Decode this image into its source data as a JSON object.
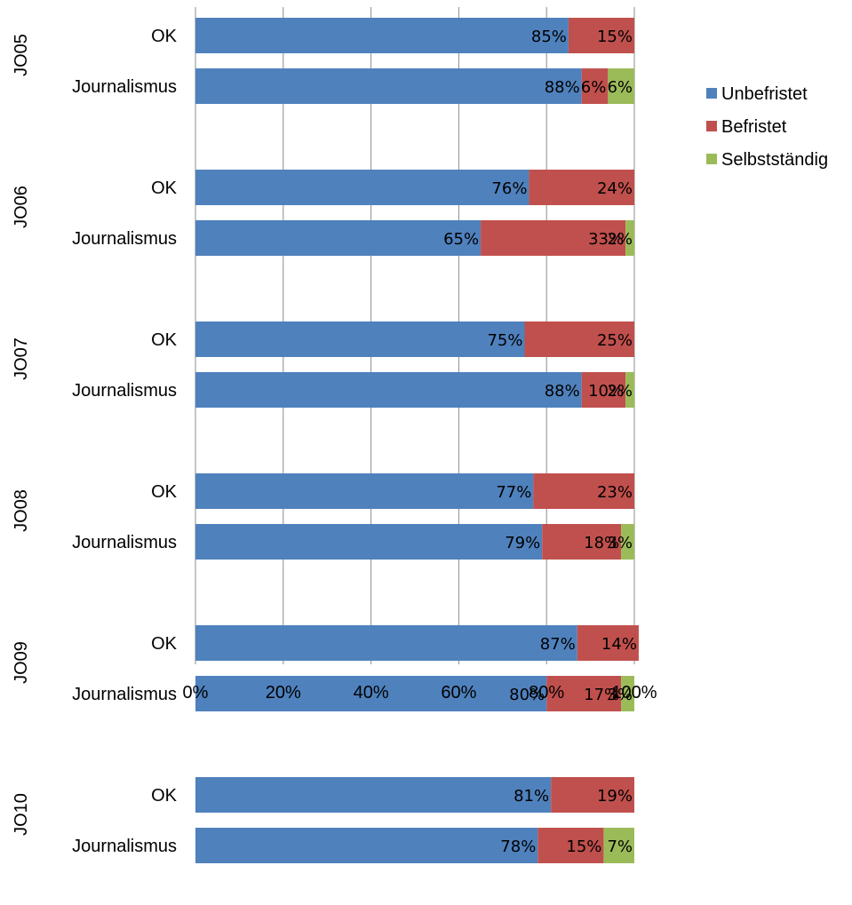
{
  "chart_data": {
    "type": "bar",
    "orientation": "horizontal",
    "stacked": "percent",
    "groups": [
      {
        "label": "JO05",
        "categories": [
          {
            "label": "OK",
            "values": [
              85,
              15,
              0
            ],
            "labels": [
              "85%",
              "15%",
              ""
            ]
          },
          {
            "label": "Journalismus",
            "values": [
              88,
              6,
              6
            ],
            "labels": [
              "88%",
              "6%",
              "6%"
            ]
          }
        ]
      },
      {
        "label": "JO06",
        "categories": [
          {
            "label": "OK",
            "values": [
              76,
              24,
              0
            ],
            "labels": [
              "76%",
              "24%",
              ""
            ]
          },
          {
            "label": "Journalismus",
            "values": [
              65,
              33,
              2
            ],
            "labels": [
              "65%",
              "33%",
              "2%"
            ]
          }
        ]
      },
      {
        "label": "JO07",
        "categories": [
          {
            "label": "OK",
            "values": [
              75,
              25,
              0
            ],
            "labels": [
              "75%",
              "25%",
              ""
            ]
          },
          {
            "label": "Journalismus",
            "values": [
              88,
              10,
              2
            ],
            "labels": [
              "88%",
              "10%",
              "2%"
            ]
          }
        ]
      },
      {
        "label": "JO08",
        "categories": [
          {
            "label": "OK",
            "values": [
              77,
              23,
              0
            ],
            "labels": [
              "77%",
              "23%",
              ""
            ]
          },
          {
            "label": "Journalismus",
            "values": [
              79,
              18,
              3
            ],
            "labels": [
              "79%",
              "18%",
              "3%"
            ]
          }
        ]
      },
      {
        "label": "JO09",
        "categories": [
          {
            "label": "OK",
            "values": [
              87,
              14,
              0
            ],
            "labels": [
              "87%",
              "14%",
              ""
            ]
          },
          {
            "label": "Journalismus",
            "values": [
              80,
              17,
              3
            ],
            "labels": [
              "80%",
              "17%",
              "3%"
            ]
          }
        ]
      },
      {
        "label": "JO10",
        "categories": [
          {
            "label": "OK",
            "values": [
              81,
              19,
              0
            ],
            "labels": [
              "81%",
              "19%",
              ""
            ]
          },
          {
            "label": "Journalismus",
            "values": [
              78,
              15,
              7
            ],
            "labels": [
              "78%",
              "15%",
              "7%"
            ]
          }
        ]
      }
    ],
    "series": [
      {
        "name": "Unbefristet",
        "color": "#4f81bd"
      },
      {
        "name": "Befristet",
        "color": "#c0504d"
      },
      {
        "name": "Selbstständig",
        "color": "#9bbb59"
      }
    ],
    "xlim": [
      0,
      100
    ],
    "xticks": [
      "0%",
      "20%",
      "40%",
      "60%",
      "80%",
      "100%"
    ],
    "grid": true,
    "legend_position": "right"
  }
}
